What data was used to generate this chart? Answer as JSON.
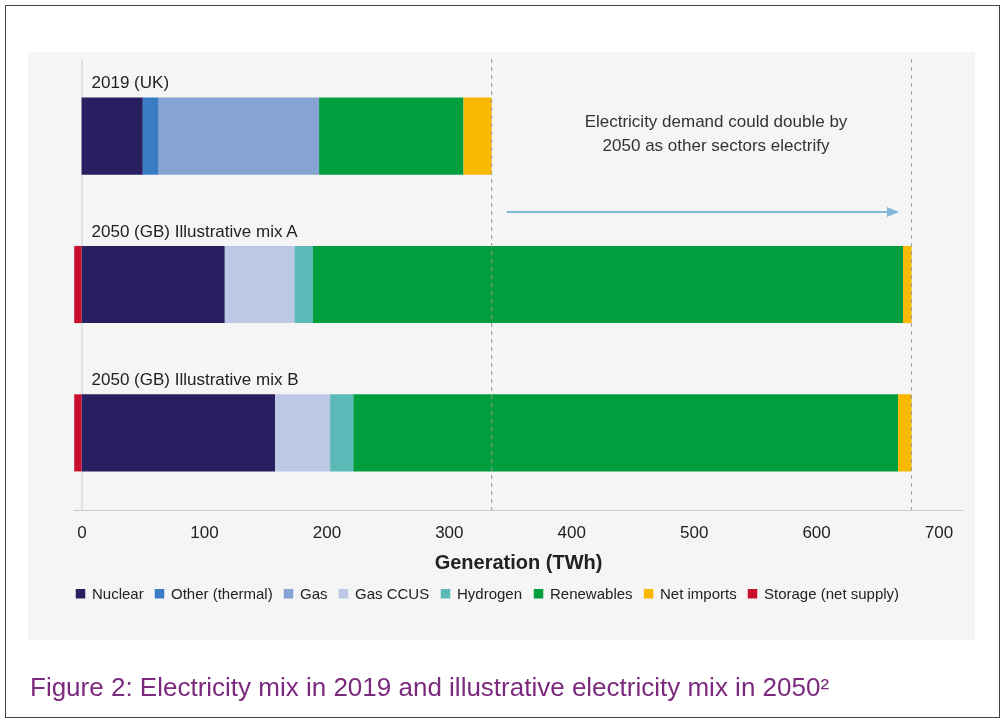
{
  "chart_data": {
    "type": "bar",
    "orientation": "horizontal",
    "stacked": true,
    "title": "Figure 2: Electricity mix in 2019 and illustrative electricity mix in 2050²",
    "xlabel": "Generation (TWh)",
    "categories": [
      "2019 (UK)",
      "2050 (GB) Illustrative mix A",
      "2050 (GB) Illustrative mix B"
    ],
    "series": [
      {
        "name": "Nuclear",
        "color": "#271f60",
        "values": [
          50,
          117,
          158
        ]
      },
      {
        "name": "Other (thermal)",
        "color": "#3a7cc4",
        "values": [
          13,
          null,
          null
        ]
      },
      {
        "name": "Gas",
        "color": "#87a3d4",
        "values": [
          131,
          null,
          null
        ]
      },
      {
        "name": "Gas CCUS",
        "color": "#bcc8e6",
        "values": [
          null,
          57,
          45
        ]
      },
      {
        "name": "Hydrogen",
        "color": "#5bbab7",
        "values": [
          null,
          15,
          19
        ]
      },
      {
        "name": "Renewables",
        "color": "#009e3d",
        "values": [
          118,
          482,
          445
        ]
      },
      {
        "name": "Net imports",
        "color": "#f8b800",
        "values": [
          23,
          7,
          11
        ]
      },
      {
        "name": "Storage (net supply)",
        "color": "#c8102e",
        "values": [
          null,
          -6,
          -6
        ]
      }
    ],
    "xlim": [
      -7,
      720
    ],
    "xticks": [
      0,
      100,
      200,
      300,
      400,
      500,
      600,
      700
    ],
    "ref_lines": [
      {
        "axis": "x",
        "value": 335,
        "color": "#999999",
        "line_style": "dashed"
      },
      {
        "axis": "x",
        "value": 678,
        "color": "#999999",
        "line_style": "dashed"
      }
    ],
    "annotations": [
      "Electricity demand could double by 2050 as other sectors electrify"
    ],
    "grid": false,
    "legend": "bottom"
  }
}
